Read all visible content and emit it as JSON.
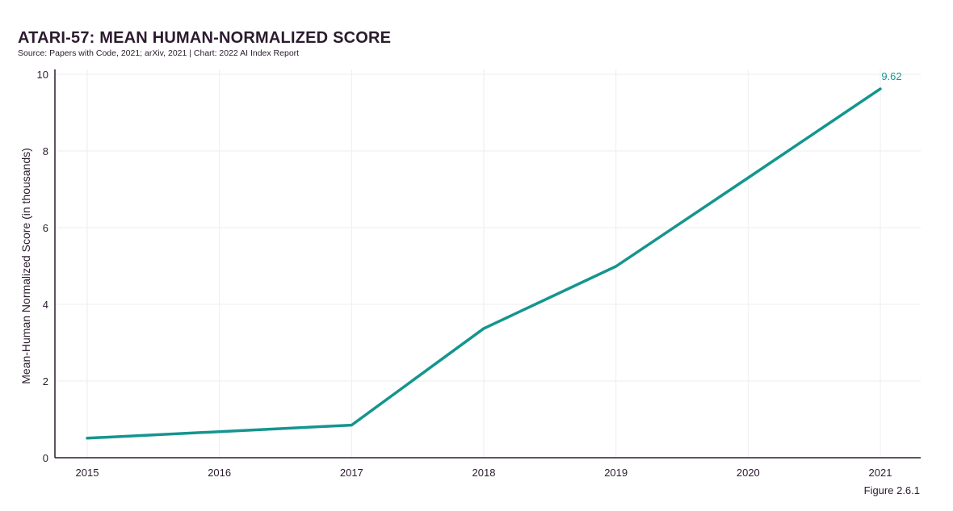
{
  "header": {
    "title": "ATARI-57: MEAN HUMAN-NORMALIZED SCORE",
    "source": "Source: Papers with Code, 2021; arXiv, 2021 | Chart: 2022 AI Index Report"
  },
  "footer": {
    "figure_label": "Figure 2.6.1"
  },
  "colors": {
    "line": "#14958f",
    "text": "#2b1b2e",
    "grid": "#eeeeee",
    "axis": "#2b1b2e"
  },
  "chart_data": {
    "type": "line",
    "title": "ATARI-57: MEAN HUMAN-NORMALIZED SCORE",
    "subtitle": "Source: Papers with Code, 2021; arXiv, 2021 | Chart: 2022 AI Index Report",
    "xlabel": "",
    "ylabel": "Mean-Human Normalized Score (in thousands)",
    "x": [
      "2015",
      "2016",
      "2017",
      "2018",
      "2019",
      "2020",
      "2021"
    ],
    "series": [
      {
        "values": [
          0.51,
          0.68,
          0.85,
          3.37,
          4.99,
          7.3,
          9.62
        ]
      }
    ],
    "data_labels": [
      {
        "index": 6,
        "text": "9.62"
      }
    ],
    "y_ticks": [
      "0",
      "2",
      "4",
      "6",
      "8",
      "10"
    ],
    "ylim": [
      0,
      10
    ],
    "grid": true,
    "legend": "none"
  }
}
